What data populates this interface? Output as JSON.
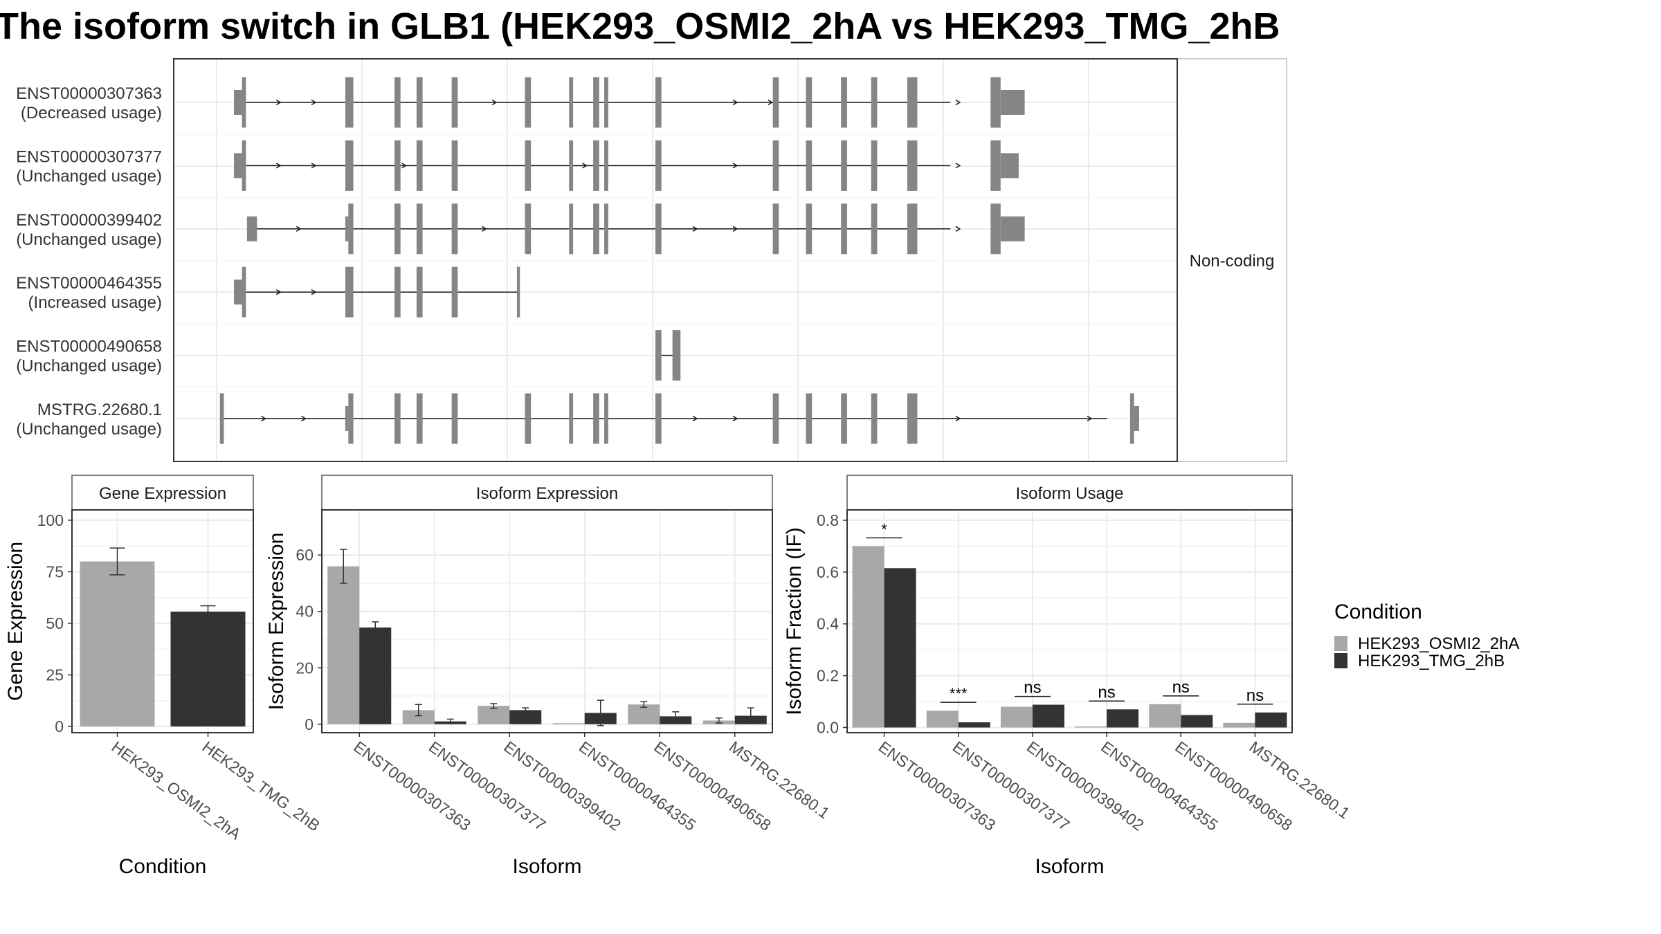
{
  "title": "The isoform switch in GLB1 (HEK293_OSMI2_2hA vs HEK293_TMG_2hB",
  "colors": {
    "cond1": "#A8A8A8",
    "cond2": "#333333",
    "exon": "#858585",
    "grid": "#EBEBEB",
    "frame": "#333333"
  },
  "structure": {
    "strip_label": "Non-coding",
    "x_range": [
      0,
      1000
    ],
    "transcripts": [
      {
        "id": "ENST00000307363",
        "note": "(Decreased usage)",
        "span": [
          60,
          774
        ],
        "exons": [
          [
            60,
            68,
            "s"
          ],
          [
            68,
            72,
            "t"
          ],
          [
            171,
            179,
            "t"
          ],
          [
            220,
            226,
            "t"
          ],
          [
            242,
            248,
            "t"
          ],
          [
            277,
            283,
            "t"
          ],
          [
            350,
            356,
            "t"
          ],
          [
            394,
            398,
            "t"
          ],
          [
            418,
            424,
            "t"
          ],
          [
            429,
            433,
            "t"
          ],
          [
            480,
            486,
            "t"
          ],
          [
            597,
            603,
            "t"
          ],
          [
            630,
            636,
            "t"
          ],
          [
            665,
            671,
            "t"
          ],
          [
            695,
            701,
            "t"
          ],
          [
            731,
            741,
            "t"
          ],
          [
            814,
            824,
            "t"
          ],
          [
            824,
            848,
            "s"
          ]
        ],
        "arrows": [
          105,
          140,
          320,
          560,
          595,
          782
        ]
      },
      {
        "id": "ENST00000307377",
        "note": "(Unchanged usage)",
        "span": [
          60,
          774
        ],
        "exons": [
          [
            60,
            68,
            "s"
          ],
          [
            68,
            72,
            "t"
          ],
          [
            171,
            179,
            "t"
          ],
          [
            220,
            226,
            "t"
          ],
          [
            242,
            248,
            "t"
          ],
          [
            277,
            283,
            "t"
          ],
          [
            350,
            356,
            "t"
          ],
          [
            394,
            398,
            "t"
          ],
          [
            418,
            424,
            "t"
          ],
          [
            429,
            433,
            "t"
          ],
          [
            480,
            486,
            "t"
          ],
          [
            597,
            603,
            "t"
          ],
          [
            630,
            636,
            "t"
          ],
          [
            665,
            671,
            "t"
          ],
          [
            695,
            701,
            "t"
          ],
          [
            731,
            741,
            "t"
          ],
          [
            814,
            824,
            "t"
          ],
          [
            824,
            842,
            "s"
          ]
        ],
        "arrows": [
          105,
          140,
          230,
          410,
          560,
          782
        ]
      },
      {
        "id": "ENST00000399402",
        "note": "(Unchanged usage)",
        "span": [
          73,
          774
        ],
        "exons": [
          [
            73,
            83,
            "s"
          ],
          [
            171,
            174,
            "s"
          ],
          [
            174,
            179,
            "t"
          ],
          [
            220,
            226,
            "t"
          ],
          [
            242,
            248,
            "t"
          ],
          [
            277,
            283,
            "t"
          ],
          [
            350,
            356,
            "t"
          ],
          [
            394,
            398,
            "t"
          ],
          [
            418,
            424,
            "t"
          ],
          [
            429,
            433,
            "t"
          ],
          [
            480,
            486,
            "t"
          ],
          [
            597,
            603,
            "t"
          ],
          [
            630,
            636,
            "t"
          ],
          [
            665,
            671,
            "t"
          ],
          [
            695,
            701,
            "t"
          ],
          [
            731,
            741,
            "t"
          ],
          [
            814,
            824,
            "t"
          ],
          [
            824,
            848,
            "s"
          ]
        ],
        "arrows": [
          125,
          310,
          520,
          560,
          782
        ]
      },
      {
        "id": "ENST00000464355",
        "note": "(Increased usage)",
        "span": [
          60,
          344
        ],
        "exons": [
          [
            60,
            68,
            "s"
          ],
          [
            68,
            72,
            "t"
          ],
          [
            171,
            179,
            "t"
          ],
          [
            220,
            226,
            "t"
          ],
          [
            242,
            248,
            "t"
          ],
          [
            277,
            283,
            "t"
          ],
          [
            342,
            345,
            "t"
          ]
        ],
        "arrows": [
          105,
          140
        ]
      },
      {
        "id": "ENST00000490658",
        "note": "(Unchanged usage)",
        "span": [
          480,
          505
        ],
        "exons": [
          [
            480,
            486,
            "t"
          ],
          [
            497,
            505,
            "t"
          ]
        ],
        "arrows": []
      },
      {
        "id": "MSTRG.22680.1",
        "note": "(Unchanged usage)",
        "span": [
          46,
          930
        ],
        "exons": [
          [
            46,
            50,
            "t"
          ],
          [
            171,
            174,
            "s"
          ],
          [
            174,
            179,
            "t"
          ],
          [
            220,
            226,
            "t"
          ],
          [
            242,
            248,
            "t"
          ],
          [
            277,
            283,
            "t"
          ],
          [
            350,
            356,
            "t"
          ],
          [
            394,
            398,
            "t"
          ],
          [
            418,
            424,
            "t"
          ],
          [
            429,
            433,
            "t"
          ],
          [
            480,
            486,
            "t"
          ],
          [
            597,
            603,
            "t"
          ],
          [
            630,
            636,
            "t"
          ],
          [
            665,
            671,
            "t"
          ],
          [
            695,
            701,
            "t"
          ],
          [
            731,
            741,
            "t"
          ],
          [
            953,
            957,
            "t"
          ],
          [
            957,
            962,
            "s"
          ]
        ],
        "arrows": [
          90,
          130,
          520,
          560,
          782,
          913
        ]
      }
    ]
  },
  "legend": {
    "title": "Condition",
    "items": [
      "HEK293_OSMI2_2hA",
      "HEK293_TMG_2hB"
    ]
  },
  "chart_data": [
    {
      "type": "bar",
      "strip": "Gene Expression",
      "ylabel": "Gene Expression",
      "xlabel": "Condition",
      "ylim": [
        -3,
        105
      ],
      "yticks": [
        0,
        25,
        50,
        75,
        100
      ],
      "categories": [
        "HEK293_OSMI2_2hA",
        "HEK293_TMG_2hB"
      ],
      "series": [
        {
          "values": [
            80,
            55.7
          ],
          "err_low": [
            73.5,
            53
          ],
          "err_high": [
            86.5,
            58.5
          ]
        }
      ]
    },
    {
      "type": "bar",
      "strip": "Isoform Expression",
      "ylabel": "Isoform Expression",
      "xlabel": "Isoform",
      "ylim": [
        -3,
        76
      ],
      "yticks": [
        0,
        20,
        40,
        60
      ],
      "categories": [
        "ENST00000307363",
        "ENST00000307377",
        "ENST00000399402",
        "ENST00000464355",
        "ENST00000490658",
        "MSTRG.22680.1"
      ],
      "series": [
        {
          "name": "HEK293_OSMI2_2hA",
          "values": [
            56,
            5,
            6.5,
            0,
            7,
            1.3
          ],
          "err_low": [
            50,
            3,
            5.6,
            0,
            6,
            0.4
          ],
          "err_high": [
            62,
            7,
            7.3,
            0,
            8,
            2.2
          ]
        },
        {
          "name": "HEK293_TMG_2hB",
          "values": [
            34.3,
            1,
            5,
            4,
            2.8,
            3
          ],
          "err_low": [
            32.3,
            0.2,
            4.2,
            -0.5,
            1.2,
            0.2
          ],
          "err_high": [
            36.3,
            1.8,
            5.8,
            8.5,
            4.4,
            5.8
          ]
        }
      ]
    },
    {
      "type": "bar",
      "strip": "Isoform Usage",
      "ylabel": "Isoform Fraction (IF)",
      "xlabel": "Isoform",
      "ylim": [
        -0.02,
        0.84
      ],
      "yticks": [
        0.0,
        0.2,
        0.4,
        0.6,
        0.8
      ],
      "ytick_labels": [
        "0.0",
        "0.2",
        "0.4",
        "0.6",
        "0.8"
      ],
      "categories": [
        "ENST00000307363",
        "ENST00000307377",
        "ENST00000399402",
        "ENST00000464355",
        "ENST00000490658",
        "MSTRG.22680.1"
      ],
      "series": [
        {
          "name": "HEK293_OSMI2_2hA",
          "values": [
            0.7,
            0.065,
            0.08,
            0.0,
            0.09,
            0.018
          ]
        },
        {
          "name": "HEK293_TMG_2hB",
          "values": [
            0.615,
            0.02,
            0.088,
            0.07,
            0.048,
            0.058
          ]
        }
      ],
      "significance": [
        "*",
        "***",
        "ns",
        "ns",
        "ns",
        "ns"
      ]
    }
  ]
}
